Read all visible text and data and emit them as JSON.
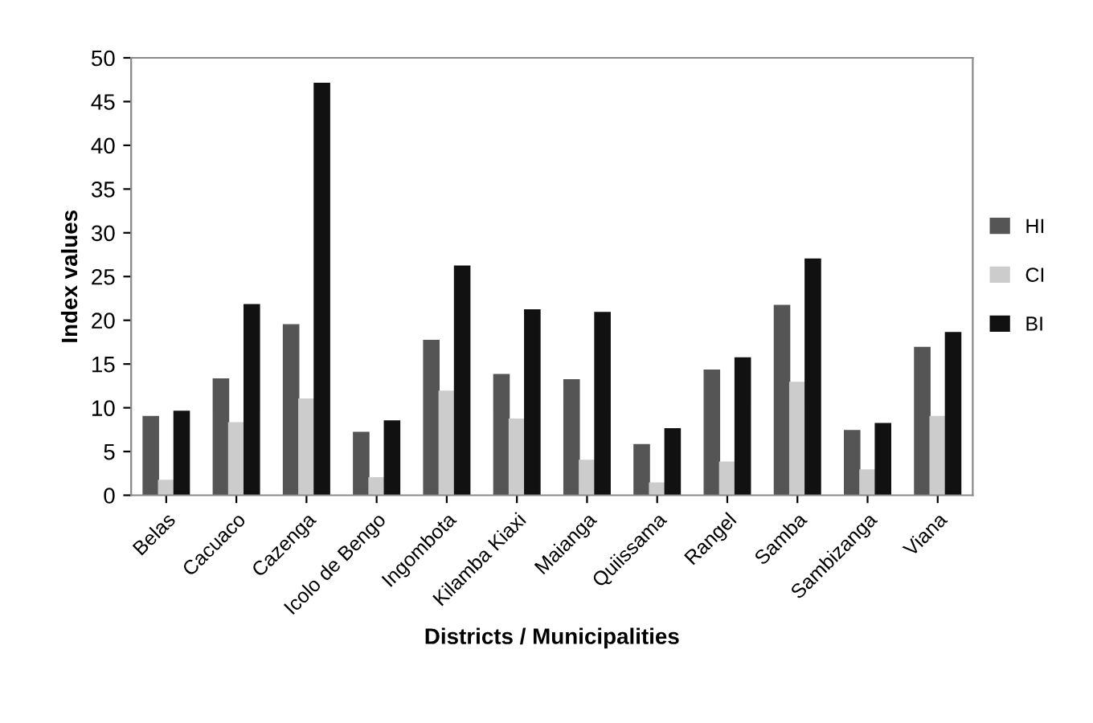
{
  "chart_data": {
    "type": "bar",
    "xlabel": "Districts / Municipalities",
    "ylabel": "Index values",
    "categories": [
      "Belas",
      "Cacuaco",
      "Cazenga",
      "Icolo de Bengo",
      "Ingombota",
      "Kilamba Kiaxi",
      "Maianga",
      "Quiissama",
      "Rangel",
      "Samba",
      "Sambizanga",
      "Viana"
    ],
    "series": [
      {
        "name": "HI",
        "color": "#555555",
        "values": [
          9.0,
          13.3,
          19.5,
          7.2,
          17.7,
          13.8,
          13.2,
          5.8,
          14.3,
          21.7,
          7.4,
          16.9
        ]
      },
      {
        "name": "CI",
        "color": "#cccccc",
        "values": [
          1.7,
          8.3,
          11.0,
          2.0,
          11.9,
          8.7,
          4.0,
          1.4,
          3.8,
          12.9,
          2.9,
          9.0
        ]
      },
      {
        "name": "BI",
        "color": "#111111",
        "values": [
          9.6,
          21.8,
          47.1,
          8.5,
          26.2,
          21.2,
          20.9,
          7.6,
          15.7,
          27.0,
          8.2,
          18.6
        ]
      }
    ],
    "ylim": [
      0,
      50
    ],
    "yticks": [
      0,
      5,
      10,
      15,
      20,
      25,
      30,
      35,
      40,
      45,
      50
    ],
    "grid": false,
    "legend": "right"
  }
}
